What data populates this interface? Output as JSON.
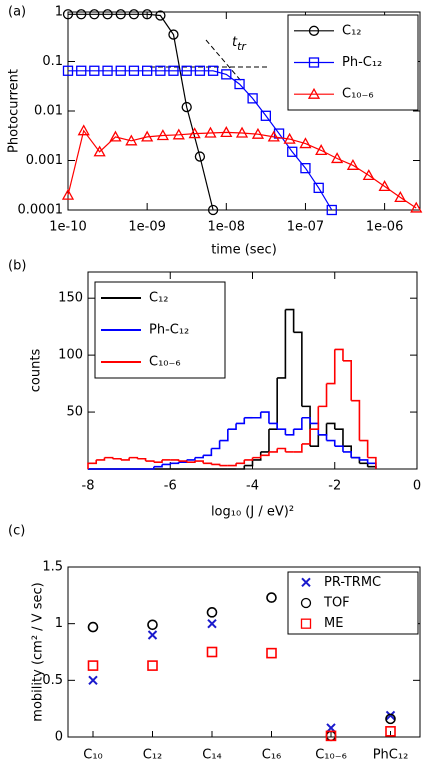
{
  "chart_data": [
    {
      "type": "line",
      "label": "(a)",
      "xlabel": "time (sec)",
      "ylabel": "Photocurrent",
      "xscale": "log",
      "yscale": "log",
      "xlim": [
        1e-10,
        2.8e-06
      ],
      "ylim": [
        0.0001,
        1
      ],
      "xticks": [
        {
          "value": 1e-10,
          "label": "1e-10"
        },
        {
          "value": 1e-09,
          "label": "1e-09"
        },
        {
          "value": 1e-08,
          "label": "1e-08"
        },
        {
          "value": 1e-07,
          "label": "1e-07"
        },
        {
          "value": 1e-06,
          "label": "1e-06"
        }
      ],
      "yticks": [
        0.0001,
        0.001,
        0.01,
        0.1,
        1
      ],
      "legend": "upper right",
      "annotation": {
        "text": "t",
        "subscript": "tr"
      },
      "series": [
        {
          "name": "C₁₂",
          "color": "#000000",
          "marker": "o",
          "x": [
            1e-10,
            1.47e-10,
            2.15e-10,
            3.16e-10,
            4.64e-10,
            6.81e-10,
            1e-09,
            1.47e-09,
            2.15e-09,
            3.16e-09,
            4.64e-09,
            6.81e-09
          ],
          "values": [
            0.9,
            0.9,
            0.9,
            0.9,
            0.9,
            0.9,
            0.9,
            0.85,
            0.35,
            0.012,
            0.0012,
            0.0001
          ]
        },
        {
          "name": "Ph-C₁₂",
          "color": "#0000ff",
          "marker": "s",
          "x": [
            1e-10,
            1.47e-10,
            2.15e-10,
            3.16e-10,
            4.64e-10,
            6.81e-10,
            1e-09,
            1.47e-09,
            2.15e-09,
            3.16e-09,
            4.64e-09,
            6.81e-09,
            1e-08,
            1.47e-08,
            2.15e-08,
            3.16e-08,
            4.64e-08,
            6.81e-08,
            1e-07,
            1.47e-07,
            2.15e-07
          ],
          "values": [
            0.065,
            0.065,
            0.065,
            0.065,
            0.065,
            0.065,
            0.065,
            0.065,
            0.065,
            0.065,
            0.065,
            0.065,
            0.055,
            0.035,
            0.018,
            0.008,
            0.0035,
            0.0015,
            0.0007,
            0.00028,
            0.0001
          ]
        },
        {
          "name": "C₁₀₋₆",
          "color": "#ff0000",
          "marker": "^",
          "x": [
            1e-10,
            1.58e-10,
            2.51e-10,
            3.98e-10,
            6.31e-10,
            1e-09,
            1.58e-09,
            2.51e-09,
            3.98e-09,
            6.31e-09,
            1e-08,
            1.58e-08,
            2.51e-08,
            3.98e-08,
            6.31e-08,
            1e-07,
            1.58e-07,
            2.51e-07,
            3.98e-07,
            6.31e-07,
            1e-06,
            1.58e-06,
            2.51e-06
          ],
          "values": [
            0.0002,
            0.004,
            0.0015,
            0.003,
            0.0025,
            0.003,
            0.0032,
            0.0033,
            0.0035,
            0.0036,
            0.0037,
            0.0036,
            0.0034,
            0.003,
            0.0027,
            0.0022,
            0.0016,
            0.0011,
            0.0008,
            0.0005,
            0.0003,
            0.00018,
            0.00011
          ]
        }
      ]
    },
    {
      "type": "histogram",
      "label": "(b)",
      "xlabel": "log₁₀ (J / eV)²",
      "ylabel": "counts",
      "xlim": [
        -8,
        0
      ],
      "ylim": [
        0,
        173
      ],
      "xticks": [
        -8,
        -6,
        -4,
        -2,
        0
      ],
      "yticks": [
        50,
        100,
        150
      ],
      "legend": "upper left",
      "bins": [
        -8,
        -7.8,
        -7.6,
        -7.4,
        -7.2,
        -7,
        -6.8,
        -6.6,
        -6.4,
        -6.2,
        -6,
        -5.8,
        -5.6,
        -5.4,
        -5.2,
        -5,
        -4.8,
        -4.6,
        -4.4,
        -4.2,
        -4,
        -3.8,
        -3.6,
        -3.4,
        -3.2,
        -3,
        -2.8,
        -2.6,
        -2.4,
        -2.2,
        -2,
        -1.8,
        -1.6,
        -1.4,
        -1.2,
        -1
      ],
      "series": [
        {
          "name": "C₁₂",
          "color": "#000000",
          "values": [
            0,
            0,
            0,
            0,
            0,
            0,
            0,
            0,
            0,
            0,
            0,
            0,
            0,
            0,
            0,
            0,
            0,
            0,
            0,
            3,
            8,
            15,
            35,
            80,
            140,
            120,
            55,
            20,
            30,
            40,
            35,
            20,
            10,
            5,
            2
          ]
        },
        {
          "name": "Ph-C₁₂",
          "color": "#0000ff",
          "values": [
            0,
            0,
            0,
            0,
            0,
            0,
            0,
            0,
            2,
            4,
            5,
            6,
            8,
            10,
            12,
            18,
            25,
            35,
            40,
            45,
            45,
            50,
            40,
            35,
            30,
            35,
            45,
            40,
            30,
            25,
            20,
            15,
            10,
            8,
            5
          ]
        },
        {
          "name": "C₁₀₋₆",
          "color": "#ff0000",
          "values": [
            5,
            8,
            10,
            9,
            8,
            10,
            9,
            7,
            6,
            8,
            8,
            7,
            6,
            7,
            5,
            4,
            3,
            3,
            5,
            8,
            10,
            12,
            15,
            18,
            15,
            15,
            22,
            35,
            55,
            75,
            105,
            95,
            60,
            25,
            10
          ]
        }
      ]
    },
    {
      "type": "scatter",
      "label": "(c)",
      "ylabel": "mobility (cm² / V sec)",
      "categories": [
        "C₁₀",
        "C₁₂",
        "C₁₄",
        "C₁₆",
        "C₁₀₋₆",
        "PhC₁₂"
      ],
      "ylim": [
        0,
        1.5
      ],
      "yticks": [
        0,
        0.5,
        1,
        1.5
      ],
      "legend": "upper right",
      "series": [
        {
          "name": "PR-TRMC",
          "color": "#1a1acc",
          "marker": "x",
          "values": [
            0.5,
            0.9,
            1.0,
            null,
            0.08,
            0.19
          ]
        },
        {
          "name": "TOF",
          "color": "#000000",
          "marker": "o",
          "values": [
            0.97,
            0.99,
            1.1,
            1.23,
            0.01,
            0.16
          ]
        },
        {
          "name": "ME",
          "color": "#ff0000",
          "marker": "s",
          "values": [
            0.63,
            0.63,
            0.75,
            0.74,
            0.01,
            0.05
          ]
        }
      ]
    }
  ]
}
